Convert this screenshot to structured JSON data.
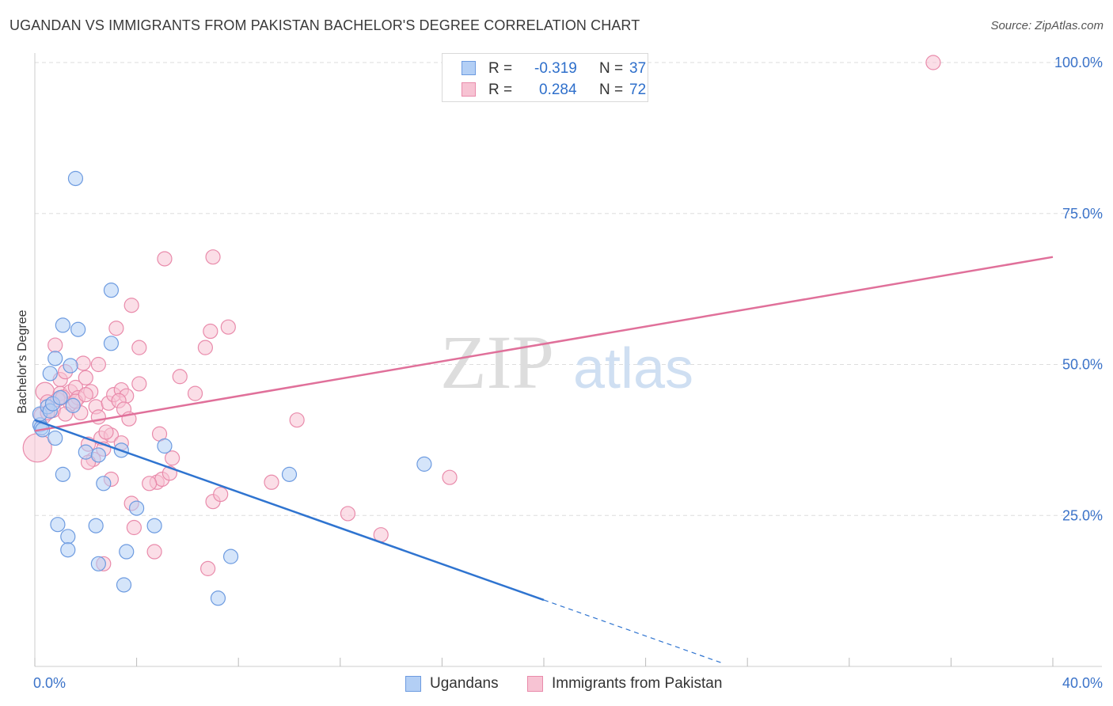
{
  "title": "UGANDAN VS IMMIGRANTS FROM PAKISTAN BACHELOR'S DEGREE CORRELATION CHART",
  "source": "Source: ZipAtlas.com",
  "watermark": {
    "zip": "ZIP",
    "atlas": "atlas"
  },
  "legend_stats": [
    {
      "r_label": "R =",
      "r_value": "-0.319",
      "n_label": "N =",
      "n_value": "37"
    },
    {
      "r_label": "R =",
      "r_value": "0.284",
      "n_label": "N =",
      "n_value": "72"
    }
  ],
  "colors": {
    "blue_fill": "#b3cff5",
    "blue_stroke": "#6d9be0",
    "blue_line": "#2f74d0",
    "pink_fill": "#f7c3d3",
    "pink_stroke": "#e98bab",
    "pink_line": "#e0709a",
    "tick_label": "#3b73c9",
    "grid": "#dddddd"
  },
  "chart_data": {
    "type": "scatter",
    "title": "UGANDAN VS IMMIGRANTS FROM PAKISTAN BACHELOR'S DEGREE CORRELATION CHART",
    "xlabel": "",
    "ylabel": "Bachelor's Degree",
    "xlim": [
      0,
      40
    ],
    "ylim": [
      0,
      103
    ],
    "x_tick_labels": [
      "0.0%",
      "40.0%"
    ],
    "y_ticks": [
      25,
      50,
      75,
      100
    ],
    "y_tick_labels": [
      "25.0%",
      "50.0%",
      "75.0%",
      "100.0%"
    ],
    "legend_position": "bottom",
    "series": [
      {
        "name": "Ugandans",
        "color": "#b3cff5",
        "r": -0.319,
        "n": 37,
        "trend": {
          "x0": 0,
          "y0": 40.8,
          "x1": 20,
          "y1": 11.0,
          "dashed_to_x": 27
        },
        "points": [
          {
            "x": 0.2,
            "y": 40.0,
            "s": 10
          },
          {
            "x": 0.25,
            "y": 39.5,
            "s": 10
          },
          {
            "x": 0.3,
            "y": 39.2,
            "s": 10
          },
          {
            "x": 0.2,
            "y": 41.8,
            "s": 10
          },
          {
            "x": 0.5,
            "y": 43.0,
            "s": 10
          },
          {
            "x": 0.6,
            "y": 42.3,
            "s": 10
          },
          {
            "x": 0.7,
            "y": 43.5,
            "s": 10
          },
          {
            "x": 1.0,
            "y": 44.5,
            "s": 10
          },
          {
            "x": 1.5,
            "y": 43.2,
            "s": 10
          },
          {
            "x": 0.6,
            "y": 48.5,
            "s": 10
          },
          {
            "x": 0.8,
            "y": 51.0,
            "s": 10
          },
          {
            "x": 1.4,
            "y": 49.8,
            "s": 10
          },
          {
            "x": 1.1,
            "y": 56.5,
            "s": 10
          },
          {
            "x": 1.7,
            "y": 55.8,
            "s": 10
          },
          {
            "x": 3.0,
            "y": 53.5,
            "s": 10
          },
          {
            "x": 3.0,
            "y": 62.3,
            "s": 10
          },
          {
            "x": 1.6,
            "y": 80.8,
            "s": 10
          },
          {
            "x": 0.8,
            "y": 37.8,
            "s": 10
          },
          {
            "x": 2.0,
            "y": 35.5,
            "s": 10
          },
          {
            "x": 2.5,
            "y": 35.0,
            "s": 10
          },
          {
            "x": 3.4,
            "y": 35.8,
            "s": 10
          },
          {
            "x": 5.1,
            "y": 36.5,
            "s": 10
          },
          {
            "x": 1.1,
            "y": 31.8,
            "s": 10
          },
          {
            "x": 2.7,
            "y": 30.3,
            "s": 10
          },
          {
            "x": 4.0,
            "y": 26.2,
            "s": 10
          },
          {
            "x": 0.9,
            "y": 23.5,
            "s": 10
          },
          {
            "x": 2.4,
            "y": 23.3,
            "s": 10
          },
          {
            "x": 4.7,
            "y": 23.3,
            "s": 10
          },
          {
            "x": 1.3,
            "y": 21.5,
            "s": 10
          },
          {
            "x": 1.3,
            "y": 19.3,
            "s": 10
          },
          {
            "x": 3.6,
            "y": 19.0,
            "s": 10
          },
          {
            "x": 2.5,
            "y": 17.0,
            "s": 10
          },
          {
            "x": 7.7,
            "y": 18.2,
            "s": 10
          },
          {
            "x": 3.5,
            "y": 13.5,
            "s": 10
          },
          {
            "x": 7.2,
            "y": 11.3,
            "s": 10
          },
          {
            "x": 10.0,
            "y": 31.8,
            "s": 10
          },
          {
            "x": 15.3,
            "y": 33.5,
            "s": 10
          }
        ]
      },
      {
        "name": "Immigrants from Pakistan",
        "color": "#f7c3d3",
        "r": 0.284,
        "n": 72,
        "trend": {
          "x0": 0,
          "y0": 39.0,
          "x1": 40,
          "y1": 67.8
        },
        "points": [
          {
            "x": 0.1,
            "y": 36.2,
            "s": 20
          },
          {
            "x": 0.4,
            "y": 45.5,
            "s": 13
          },
          {
            "x": 0.3,
            "y": 41.5,
            "s": 12
          },
          {
            "x": 0.7,
            "y": 42.5,
            "s": 11
          },
          {
            "x": 0.5,
            "y": 43.8,
            "s": 10
          },
          {
            "x": 0.8,
            "y": 53.2,
            "s": 10
          },
          {
            "x": 1.0,
            "y": 47.5,
            "s": 10
          },
          {
            "x": 1.0,
            "y": 45.2,
            "s": 10
          },
          {
            "x": 1.2,
            "y": 48.8,
            "s": 10
          },
          {
            "x": 1.4,
            "y": 45.5,
            "s": 10
          },
          {
            "x": 1.4,
            "y": 43.5,
            "s": 10
          },
          {
            "x": 1.6,
            "y": 46.2,
            "s": 10
          },
          {
            "x": 1.7,
            "y": 44.5,
            "s": 10
          },
          {
            "x": 1.8,
            "y": 42.0,
            "s": 10
          },
          {
            "x": 2.0,
            "y": 47.8,
            "s": 10
          },
          {
            "x": 1.9,
            "y": 50.2,
            "s": 10
          },
          {
            "x": 2.2,
            "y": 45.5,
            "s": 10
          },
          {
            "x": 2.4,
            "y": 43.0,
            "s": 10
          },
          {
            "x": 2.5,
            "y": 41.3,
            "s": 10
          },
          {
            "x": 2.5,
            "y": 50.0,
            "s": 10
          },
          {
            "x": 1.2,
            "y": 41.8,
            "s": 10
          },
          {
            "x": 2.9,
            "y": 43.6,
            "s": 10
          },
          {
            "x": 3.1,
            "y": 45.0,
            "s": 10
          },
          {
            "x": 3.2,
            "y": 56.0,
            "s": 10
          },
          {
            "x": 3.4,
            "y": 45.8,
            "s": 10
          },
          {
            "x": 3.6,
            "y": 44.8,
            "s": 10
          },
          {
            "x": 3.3,
            "y": 44.0,
            "s": 10
          },
          {
            "x": 3.5,
            "y": 42.6,
            "s": 10
          },
          {
            "x": 3.7,
            "y": 41.0,
            "s": 10
          },
          {
            "x": 2.1,
            "y": 36.8,
            "s": 10
          },
          {
            "x": 2.6,
            "y": 37.8,
            "s": 10
          },
          {
            "x": 3.0,
            "y": 38.3,
            "s": 10
          },
          {
            "x": 3.4,
            "y": 37.0,
            "s": 10
          },
          {
            "x": 2.7,
            "y": 36.0,
            "s": 10
          },
          {
            "x": 2.8,
            "y": 38.8,
            "s": 10
          },
          {
            "x": 2.3,
            "y": 34.3,
            "s": 10
          },
          {
            "x": 2.1,
            "y": 33.8,
            "s": 10
          },
          {
            "x": 3.0,
            "y": 31.0,
            "s": 10
          },
          {
            "x": 3.8,
            "y": 27.0,
            "s": 10
          },
          {
            "x": 3.9,
            "y": 23.0,
            "s": 10
          },
          {
            "x": 4.1,
            "y": 46.8,
            "s": 10
          },
          {
            "x": 4.1,
            "y": 52.8,
            "s": 10
          },
          {
            "x": 3.8,
            "y": 59.8,
            "s": 10
          },
          {
            "x": 4.8,
            "y": 30.5,
            "s": 10
          },
          {
            "x": 5.0,
            "y": 31.0,
            "s": 10
          },
          {
            "x": 4.5,
            "y": 30.3,
            "s": 10
          },
          {
            "x": 4.9,
            "y": 38.5,
            "s": 10
          },
          {
            "x": 5.4,
            "y": 34.5,
            "s": 10
          },
          {
            "x": 5.3,
            "y": 32.0,
            "s": 10
          },
          {
            "x": 5.7,
            "y": 48.0,
            "s": 10
          },
          {
            "x": 6.3,
            "y": 45.2,
            "s": 10
          },
          {
            "x": 5.1,
            "y": 67.5,
            "s": 10
          },
          {
            "x": 6.7,
            "y": 52.8,
            "s": 10
          },
          {
            "x": 6.9,
            "y": 55.5,
            "s": 10
          },
          {
            "x": 7.6,
            "y": 56.2,
            "s": 10
          },
          {
            "x": 7.0,
            "y": 67.8,
            "s": 10
          },
          {
            "x": 7.0,
            "y": 27.3,
            "s": 10
          },
          {
            "x": 7.3,
            "y": 28.5,
            "s": 10
          },
          {
            "x": 6.8,
            "y": 16.2,
            "s": 10
          },
          {
            "x": 4.7,
            "y": 19.0,
            "s": 10
          },
          {
            "x": 2.7,
            "y": 17.0,
            "s": 10
          },
          {
            "x": 9.3,
            "y": 30.5,
            "s": 10
          },
          {
            "x": 10.3,
            "y": 40.8,
            "s": 10
          },
          {
            "x": 12.3,
            "y": 25.3,
            "s": 10
          },
          {
            "x": 13.6,
            "y": 21.8,
            "s": 10
          },
          {
            "x": 16.3,
            "y": 31.3,
            "s": 10
          },
          {
            "x": 35.3,
            "y": 100.0,
            "s": 10
          },
          {
            "x": 0.9,
            "y": 44.2,
            "s": 10
          },
          {
            "x": 1.1,
            "y": 44.6,
            "s": 10
          },
          {
            "x": 0.5,
            "y": 42.0,
            "s": 10
          },
          {
            "x": 1.6,
            "y": 43.9,
            "s": 10
          },
          {
            "x": 2.0,
            "y": 45.0,
            "s": 10
          }
        ]
      }
    ]
  }
}
